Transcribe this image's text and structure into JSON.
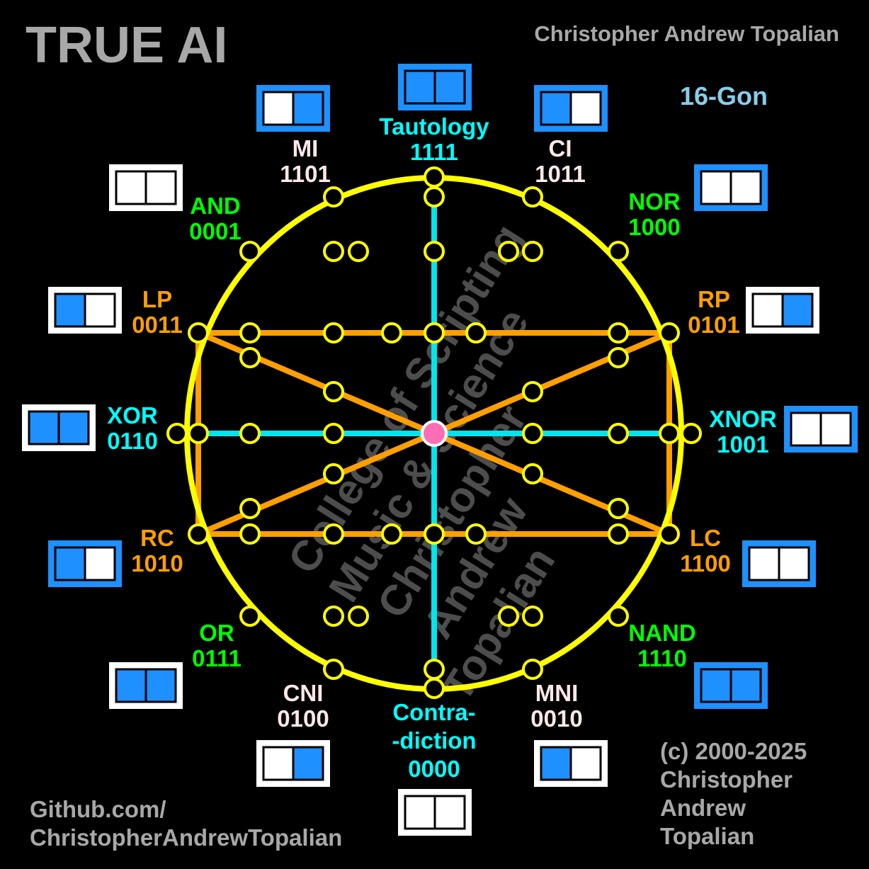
{
  "header": {
    "title": "TRUE AI",
    "author": "Christopher Andrew Topalian",
    "gon_label": "16-Gon"
  },
  "footer": {
    "github_line1": "Github.com/",
    "github_line2": "ChristopherAndrewTopalian",
    "copyright": [
      "(c) 2000-2025",
      "Christopher",
      "Andrew",
      "Topalian"
    ]
  },
  "watermark": {
    "lines": [
      "College of Scripting",
      "Music & Science",
      "Christopher",
      "Andrew",
      "Topalian"
    ]
  },
  "colors": {
    "background": "#000000",
    "circle": "#FFFF00",
    "cyan_line": "#00E5EE",
    "orange_line": "#FF9F00",
    "center_dot": "#FF6EB4",
    "box_blue": "#1E90FF",
    "label_white": "#FFE8E8",
    "label_green": "#00FF00",
    "label_orange": "#FF9F00",
    "label_cyan": "#00FFFF",
    "gray_text": "#A8A8A8",
    "gon_blue": "#87CEEB"
  },
  "operators": [
    {
      "id": "tautology",
      "name": "Tautology",
      "code": "1111",
      "color": "cyan",
      "box": [
        "blue",
        "blue"
      ]
    },
    {
      "id": "ci",
      "name": "CI",
      "code": "1011",
      "color": "white",
      "box": [
        "blue",
        "white"
      ]
    },
    {
      "id": "nor",
      "name": "NOR",
      "code": "1000",
      "color": "green",
      "box": [
        "white",
        "white"
      ]
    },
    {
      "id": "rp",
      "name": "RP",
      "code": "0101",
      "color": "orange",
      "box": [
        "white",
        "blue"
      ]
    },
    {
      "id": "xnor",
      "name": "XNOR",
      "code": "1001",
      "color": "cyan",
      "box": [
        "white",
        "white"
      ]
    },
    {
      "id": "lc",
      "name": "LC",
      "code": "1100",
      "color": "orange",
      "box": [
        "white",
        "white"
      ]
    },
    {
      "id": "nand",
      "name": "NAND",
      "code": "1110",
      "color": "green",
      "box": [
        "blue",
        "blue"
      ]
    },
    {
      "id": "mni",
      "name": "MNI",
      "code": "0010",
      "color": "white",
      "box": [
        "blue",
        "white"
      ]
    },
    {
      "id": "contradiction",
      "name_lines": [
        "Contra-",
        "-diction"
      ],
      "code": "0000",
      "color": "cyan",
      "box": [
        "white",
        "white"
      ]
    },
    {
      "id": "cni",
      "name": "CNI",
      "code": "0100",
      "color": "white",
      "box": [
        "white",
        "blue"
      ]
    },
    {
      "id": "or",
      "name": "OR",
      "code": "0111",
      "color": "green",
      "box": [
        "blue",
        "blue"
      ]
    },
    {
      "id": "rc",
      "name": "RC",
      "code": "1010",
      "color": "orange",
      "box": [
        "blue",
        "white"
      ]
    },
    {
      "id": "xor",
      "name": "XOR",
      "code": "0110",
      "color": "cyan",
      "box": [
        "blue",
        "blue"
      ]
    },
    {
      "id": "lp",
      "name": "LP",
      "code": "0011",
      "color": "orange",
      "box": [
        "blue",
        "white"
      ]
    },
    {
      "id": "and",
      "name": "AND",
      "code": "0001",
      "color": "green",
      "box": [
        "white",
        "white"
      ]
    },
    {
      "id": "mi",
      "name": "MI",
      "code": "1101",
      "color": "white",
      "box": [
        "white",
        "blue"
      ]
    }
  ]
}
